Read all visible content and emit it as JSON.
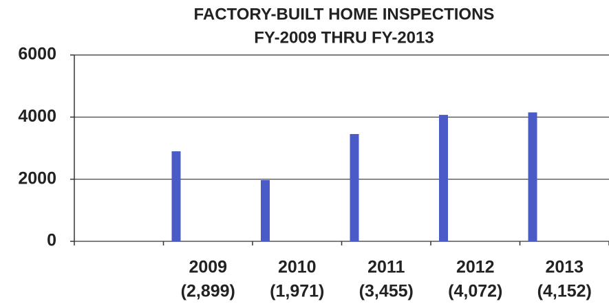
{
  "chart_data": {
    "type": "bar",
    "title": [
      "FACTORY-BUILT HOME INSPECTIONS",
      "FY-2009 THRU FY-2013"
    ],
    "categories": [
      "2009",
      "2010",
      "2011",
      "2012",
      "2013"
    ],
    "values": [
      2899,
      1971,
      3455,
      4072,
      4152
    ],
    "value_labels": [
      "(2,899)",
      "(1,971)",
      "(3,455)",
      "(4,072)",
      "(4,152)"
    ],
    "color": "#4a5bc8",
    "ylim": [
      0,
      6000
    ],
    "yticks": [
      0,
      2000,
      4000,
      6000
    ],
    "grid": true
  }
}
